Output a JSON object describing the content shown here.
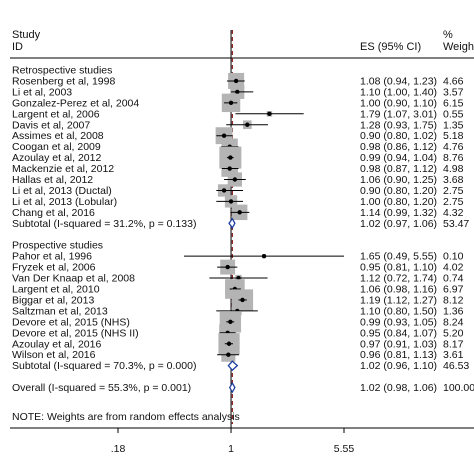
{
  "chart_data": {
    "type": "forest",
    "header": {
      "study_line1": "Study",
      "study_line2": "ID",
      "es_label": "ES (95% CI)",
      "weight_line1": "%",
      "weight_line2": "Weight"
    },
    "x_axis": {
      "scale": "log",
      "ticks": [
        {
          "value": 0.18,
          "label": ".18"
        },
        {
          "value": 1,
          "label": "1"
        },
        {
          "value": 5.55,
          "label": "5.55"
        }
      ],
      "reference_line": 1,
      "dashed_line": 1.02
    },
    "rows": [
      {
        "kind": "group",
        "label": "Retrospective studies"
      },
      {
        "kind": "study",
        "label": "Rosenberg et al, 1998",
        "es": 1.08,
        "lo": 0.94,
        "hi": 1.23,
        "es_text": "1.08 (0.94, 1.23)",
        "weight": 4.66,
        "weight_text": "4.66"
      },
      {
        "kind": "study",
        "label": "Li et al, 2003",
        "es": 1.1,
        "lo": 1.0,
        "hi": 1.4,
        "es_text": "1.10 (1.00, 1.40)",
        "weight": 3.57,
        "weight_text": "3.57"
      },
      {
        "kind": "study",
        "label": "Gonzalez-Perez et al, 2004",
        "es": 1.0,
        "lo": 0.9,
        "hi": 1.1,
        "es_text": "1.00 (0.90, 1.10)",
        "weight": 6.15,
        "weight_text": "6.15"
      },
      {
        "kind": "study",
        "label": "Largent et al, 2006",
        "es": 1.79,
        "lo": 1.07,
        "hi": 3.01,
        "es_text": "1.79 (1.07, 3.01)",
        "weight": 0.55,
        "weight_text": "0.55"
      },
      {
        "kind": "study",
        "label": "Davis et al, 2007",
        "es": 1.28,
        "lo": 0.93,
        "hi": 1.75,
        "es_text": "1.28 (0.93, 1.75)",
        "weight": 1.35,
        "weight_text": "1.35"
      },
      {
        "kind": "study",
        "label": "Assimes et al, 2008",
        "es": 0.9,
        "lo": 0.8,
        "hi": 1.02,
        "es_text": "0.90 (0.80, 1.02)",
        "weight": 5.18,
        "weight_text": "5.18"
      },
      {
        "kind": "study",
        "label": "Coogan et al, 2009",
        "es": 0.98,
        "lo": 0.86,
        "hi": 1.12,
        "es_text": "0.98 (0.86, 1.12)",
        "weight": 4.76,
        "weight_text": "4.76"
      },
      {
        "kind": "study",
        "label": "Azoulay et al, 2012",
        "es": 0.99,
        "lo": 0.94,
        "hi": 1.04,
        "es_text": "0.99 (0.94, 1.04)",
        "weight": 8.76,
        "weight_text": "8.76"
      },
      {
        "kind": "study",
        "label": "Mackenzie et al, 2012",
        "es": 0.98,
        "lo": 0.87,
        "hi": 1.12,
        "es_text": "0.98 (0.87, 1.12)",
        "weight": 4.98,
        "weight_text": "4.98"
      },
      {
        "kind": "study",
        "label": "Hallas et al, 2012",
        "es": 1.06,
        "lo": 0.9,
        "hi": 1.25,
        "es_text": "1.06 (0.90, 1.25)",
        "weight": 3.68,
        "weight_text": "3.68"
      },
      {
        "kind": "study",
        "label": "Li et al, 2013 (Ductal)",
        "es": 0.9,
        "lo": 0.8,
        "hi": 1.2,
        "es_text": "0.90 (0.80, 1.20)",
        "weight": 2.75,
        "weight_text": "2.75"
      },
      {
        "kind": "study",
        "label": "Li et al, 2013 (Lobular)",
        "es": 1.0,
        "lo": 0.8,
        "hi": 1.2,
        "es_text": "1.00 (0.80, 1.20)",
        "weight": 2.75,
        "weight_text": "2.75"
      },
      {
        "kind": "study",
        "label": "Chang et al, 2016",
        "es": 1.14,
        "lo": 0.99,
        "hi": 1.32,
        "es_text": "1.14 (0.99, 1.32)",
        "weight": 4.32,
        "weight_text": "4.32"
      },
      {
        "kind": "subtotal",
        "label": "Subtotal  (I-squared = 31.2%, p = 0.133)",
        "es": 1.02,
        "lo": 0.97,
        "hi": 1.06,
        "es_text": "1.02 (0.97, 1.06)",
        "weight": 53.47,
        "weight_text": "53.47"
      },
      {
        "kind": "blank"
      },
      {
        "kind": "group",
        "label": "Prospective studies"
      },
      {
        "kind": "study",
        "label": "Pahor et al, 1996",
        "es": 1.65,
        "lo": 0.49,
        "hi": 5.55,
        "es_text": "1.65 (0.49, 5.55)",
        "weight": 0.1,
        "weight_text": "0.10"
      },
      {
        "kind": "study",
        "label": "Fryzek et al, 2006",
        "es": 0.95,
        "lo": 0.81,
        "hi": 1.1,
        "es_text": "0.95 (0.81, 1.10)",
        "weight": 4.02,
        "weight_text": "4.02"
      },
      {
        "kind": "study",
        "label": "Van Der Knaap et al, 2008",
        "es": 1.12,
        "lo": 0.72,
        "hi": 1.74,
        "es_text": "1.12 (0.72, 1.74)",
        "weight": 0.74,
        "weight_text": "0.74"
      },
      {
        "kind": "study",
        "label": "Largent et al, 2010",
        "es": 1.06,
        "lo": 0.98,
        "hi": 1.16,
        "es_text": "1.06 (0.98, 1.16)",
        "weight": 6.97,
        "weight_text": "6.97"
      },
      {
        "kind": "study",
        "label": "Biggar et al, 2013",
        "es": 1.19,
        "lo": 1.12,
        "hi": 1.27,
        "es_text": "1.19 (1.12, 1.27)",
        "weight": 8.12,
        "weight_text": "8.12"
      },
      {
        "kind": "study",
        "label": "Saltzman et al, 2013",
        "es": 1.1,
        "lo": 0.8,
        "hi": 1.5,
        "es_text": "1.10 (0.80, 1.50)",
        "weight": 1.36,
        "weight_text": "1.36"
      },
      {
        "kind": "study",
        "label": "Devore et al, 2015 (NHS)",
        "es": 0.99,
        "lo": 0.93,
        "hi": 1.05,
        "es_text": "0.99 (0.93, 1.05)",
        "weight": 8.24,
        "weight_text": "8.24"
      },
      {
        "kind": "study",
        "label": "Devore et al, 2015 (NHS II)",
        "es": 0.95,
        "lo": 0.84,
        "hi": 1.07,
        "es_text": "0.95 (0.84, 1.07)",
        "weight": 5.2,
        "weight_text": "5.20"
      },
      {
        "kind": "study",
        "label": "Azoulay et al, 2016",
        "es": 0.97,
        "lo": 0.91,
        "hi": 1.03,
        "es_text": "0.97 (0.91, 1.03)",
        "weight": 8.17,
        "weight_text": "8.17"
      },
      {
        "kind": "study",
        "label": "Wilson et al, 2016",
        "es": 0.96,
        "lo": 0.81,
        "hi": 1.13,
        "es_text": "0.96 (0.81, 1.13)",
        "weight": 3.61,
        "weight_text": "3.61"
      },
      {
        "kind": "subtotal",
        "label": "Subtotal  (I-squared = 70.3%, p = 0.000)",
        "es": 1.02,
        "lo": 0.96,
        "hi": 1.1,
        "es_text": "1.02 (0.96, 1.10)",
        "weight": 46.53,
        "weight_text": "46.53"
      },
      {
        "kind": "blank"
      },
      {
        "kind": "overall",
        "label": "Overall  (I-squared = 55.3%, p = 0.001)",
        "es": 1.02,
        "lo": 0.98,
        "hi": 1.06,
        "es_text": "1.02 (0.98, 1.06)",
        "weight": 100.0,
        "weight_text": "100.00"
      }
    ],
    "note": "NOTE: Weights are from random effects analysis",
    "colors": {
      "box": "#b4b4b4",
      "reference_line": "#000000",
      "dashed_line": "#8b1a1a",
      "diamond": "#1f3fa0"
    }
  }
}
